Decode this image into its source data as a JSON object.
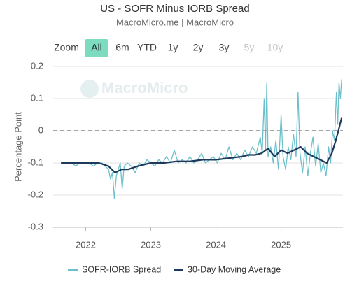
{
  "chart_data": {
    "type": "line",
    "title": "US - SOFR Minus IORB Spread",
    "subtitle": "MacroMicro.me | MacroMicro",
    "watermark": "MacroMicro",
    "y_label": "Percentage Point",
    "range_selector": {
      "label": "Zoom",
      "buttons": [
        {
          "label": "All",
          "state": "selected"
        },
        {
          "label": "6m",
          "state": "enabled"
        },
        {
          "label": "YTD",
          "state": "enabled"
        },
        {
          "label": "1y",
          "state": "enabled"
        },
        {
          "label": "2y",
          "state": "enabled"
        },
        {
          "label": "3y",
          "state": "enabled"
        },
        {
          "label": "5y",
          "state": "disabled"
        },
        {
          "label": "10y",
          "state": "disabled"
        }
      ]
    },
    "xlim": [
      2021.5,
      2025.95
    ],
    "xticks": [
      2022,
      2023,
      2024,
      2025
    ],
    "ylim": [
      -0.3,
      0.2
    ],
    "yticks": [
      -0.3,
      -0.2,
      -0.1,
      0,
      0.1,
      0.2
    ],
    "grid": true,
    "reference_line": {
      "value": 0,
      "style": "dashed",
      "color": "#999999"
    },
    "legend": "bottom",
    "series": [
      {
        "name": "SOFR-IORB Spread",
        "color": "#6cc0cc",
        "width": 1.3,
        "x": [
          2021.62,
          2021.7,
          2021.78,
          2021.85,
          2021.9,
          2021.98,
          2022.05,
          2022.12,
          2022.18,
          2022.25,
          2022.3,
          2022.35,
          2022.38,
          2022.41,
          2022.44,
          2022.47,
          2022.5,
          2022.53,
          2022.56,
          2022.59,
          2022.64,
          2022.7,
          2022.76,
          2022.82,
          2022.88,
          2022.94,
          2023.0,
          2023.06,
          2023.12,
          2023.18,
          2023.24,
          2023.3,
          2023.36,
          2023.42,
          2023.48,
          2023.54,
          2023.6,
          2023.66,
          2023.72,
          2023.78,
          2023.84,
          2023.9,
          2023.96,
          2024.02,
          2024.08,
          2024.14,
          2024.2,
          2024.26,
          2024.32,
          2024.38,
          2024.44,
          2024.5,
          2024.56,
          2024.62,
          2024.68,
          2024.71,
          2024.74,
          2024.76,
          2024.78,
          2024.8,
          2024.84,
          2024.88,
          2024.92,
          2024.96,
          2025.0,
          2025.03,
          2025.07,
          2025.11,
          2025.15,
          2025.19,
          2025.23,
          2025.26,
          2025.29,
          2025.33,
          2025.37,
          2025.41,
          2025.45,
          2025.49,
          2025.53,
          2025.57,
          2025.61,
          2025.65,
          2025.69,
          2025.73,
          2025.76,
          2025.79,
          2025.82,
          2025.85,
          2025.87,
          2025.89,
          2025.91,
          2025.93
        ],
        "values": [
          -0.1,
          -0.1,
          -0.1,
          -0.11,
          -0.1,
          -0.1,
          -0.1,
          -0.11,
          -0.1,
          -0.1,
          -0.11,
          -0.12,
          -0.15,
          -0.13,
          -0.21,
          -0.14,
          -0.12,
          -0.1,
          -0.18,
          -0.11,
          -0.1,
          -0.11,
          -0.13,
          -0.1,
          -0.11,
          -0.09,
          -0.1,
          -0.11,
          -0.09,
          -0.1,
          -0.08,
          -0.1,
          -0.06,
          -0.1,
          -0.09,
          -0.1,
          -0.08,
          -0.1,
          -0.09,
          -0.07,
          -0.1,
          -0.09,
          -0.08,
          -0.1,
          -0.07,
          -0.09,
          -0.05,
          -0.09,
          -0.07,
          -0.09,
          -0.06,
          -0.08,
          -0.05,
          -0.07,
          -0.02,
          -0.07,
          0.1,
          -0.06,
          0.15,
          -0.08,
          -0.05,
          -0.1,
          -0.03,
          -0.12,
          0.05,
          -0.08,
          -0.12,
          -0.05,
          -0.09,
          -0.01,
          -0.08,
          0.12,
          -0.07,
          -0.13,
          -0.05,
          -0.14,
          -0.07,
          -0.02,
          -0.11,
          -0.04,
          -0.13,
          -0.1,
          -0.14,
          -0.05,
          -0.1,
          0.0,
          -0.03,
          0.12,
          0.02,
          0.15,
          0.1,
          0.16
        ]
      },
      {
        "name": "30-Day Moving Average",
        "color": "#1d3a5c",
        "width": 2.2,
        "x": [
          2021.62,
          2021.8,
          2022.0,
          2022.2,
          2022.35,
          2022.45,
          2022.55,
          2022.65,
          2022.8,
          2023.0,
          2023.2,
          2023.4,
          2023.6,
          2023.8,
          2024.0,
          2024.2,
          2024.4,
          2024.5,
          2024.6,
          2024.7,
          2024.8,
          2024.9,
          2025.0,
          2025.1,
          2025.2,
          2025.3,
          2025.4,
          2025.5,
          2025.6,
          2025.7,
          2025.78,
          2025.84,
          2025.88,
          2025.93
        ],
        "values": [
          -0.1,
          -0.1,
          -0.1,
          -0.1,
          -0.11,
          -0.13,
          -0.12,
          -0.12,
          -0.11,
          -0.1,
          -0.1,
          -0.095,
          -0.095,
          -0.09,
          -0.09,
          -0.085,
          -0.08,
          -0.075,
          -0.075,
          -0.07,
          -0.055,
          -0.08,
          -0.06,
          -0.07,
          -0.06,
          -0.05,
          -0.07,
          -0.08,
          -0.09,
          -0.1,
          -0.07,
          -0.03,
          0.0,
          0.04
        ]
      }
    ]
  }
}
